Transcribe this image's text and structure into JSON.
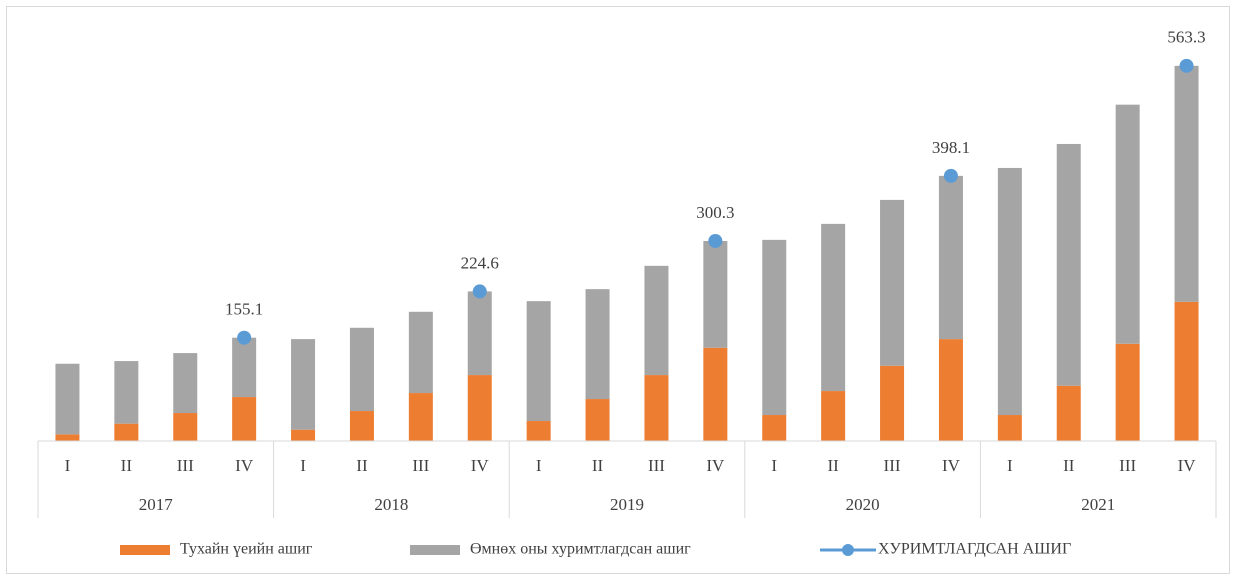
{
  "chart_data": {
    "type": "bar",
    "stacked": true,
    "categories": [
      "I",
      "II",
      "III",
      "IV",
      "I",
      "II",
      "III",
      "IV",
      "I",
      "II",
      "III",
      "IV",
      "I",
      "II",
      "III",
      "IV",
      "I",
      "II",
      "III",
      "IV"
    ],
    "groups": [
      "2017",
      "2018",
      "2019",
      "2020",
      "2021"
    ],
    "ylim": [
      0,
      600
    ],
    "legend": "bottom",
    "series": [
      {
        "name": "Тухайн үеийн ашиг",
        "color": "#ed7d31",
        "values": [
          10,
          26,
          42,
          66,
          17,
          45,
          72,
          99,
          30,
          63,
          99,
          140,
          39,
          75,
          113,
          153,
          39,
          83,
          146,
          209
        ]
      },
      {
        "name": "Өмнөх оны хуримтлагдсан ашиг",
        "color": "#a5a5a5",
        "values": [
          106,
          94,
          90,
          89.1,
          136,
          125,
          122,
          125.6,
          180,
          165,
          164,
          160.3,
          263,
          251,
          249,
          245.1,
          371,
          363,
          359,
          354.3
        ]
      },
      {
        "name": "ХУРИМТЛАГДСАН АШИГ",
        "type": "line",
        "color": "#5b9bd5",
        "values": [
          null,
          null,
          null,
          155.1,
          null,
          null,
          null,
          224.6,
          null,
          null,
          null,
          300.3,
          null,
          null,
          null,
          398.1,
          null,
          null,
          null,
          563.3
        ]
      }
    ]
  }
}
